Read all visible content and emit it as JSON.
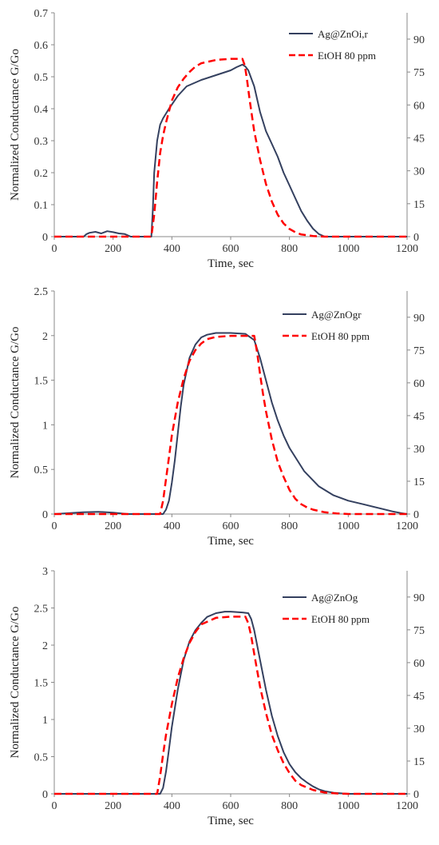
{
  "colors": {
    "sensor": "#34405f",
    "ethanol": "#ff0000",
    "axis": "#888888"
  },
  "chart_data": [
    {
      "type": "line",
      "xlabel": "Time, sec",
      "ylabel": "Normalized Conductance  G/Go",
      "xlim": [
        0,
        1200
      ],
      "xticks": [
        "0",
        "200",
        "400",
        "600",
        "800",
        "1000",
        "1200"
      ],
      "ylim": [
        0,
        0.7
      ],
      "yticks": [
        "0",
        "0.1",
        "0.2",
        "0.3",
        "0.4",
        "0.5",
        "0.6",
        "0.7"
      ],
      "y2lim": [
        0,
        102
      ],
      "y2ticks": [
        "0",
        "15",
        "30",
        "45",
        "60",
        "75",
        "90"
      ],
      "grid": false,
      "legend": "top-right",
      "series": [
        {
          "name": "Ag@ZnOi,r",
          "style": "solid",
          "axis": "left",
          "x": [
            0,
            100,
            110,
            120,
            140,
            160,
            180,
            200,
            220,
            240,
            260,
            300,
            330,
            335,
            340,
            350,
            360,
            370,
            390,
            420,
            450,
            500,
            550,
            600,
            620,
            640,
            650,
            660,
            680,
            700,
            720,
            740,
            760,
            780,
            800,
            820,
            840,
            860,
            880,
            900,
            920,
            1200
          ],
          "y": [
            0,
            0,
            0.008,
            0.012,
            0.015,
            0.01,
            0.017,
            0.014,
            0.01,
            0.008,
            0,
            0,
            0,
            0.08,
            0.2,
            0.3,
            0.35,
            0.37,
            0.4,
            0.44,
            0.47,
            0.49,
            0.505,
            0.52,
            0.53,
            0.538,
            0.532,
            0.52,
            0.47,
            0.39,
            0.33,
            0.29,
            0.25,
            0.2,
            0.16,
            0.12,
            0.08,
            0.05,
            0.025,
            0.008,
            0,
            0
          ]
        },
        {
          "name": "EtOH 80 ppm",
          "style": "dashed",
          "axis": "right",
          "x": [
            0,
            330,
            340,
            350,
            360,
            370,
            380,
            400,
            420,
            440,
            460,
            480,
            500,
            550,
            600,
            640,
            648,
            655,
            665,
            680,
            700,
            720,
            740,
            760,
            780,
            800,
            820,
            840,
            880,
            920,
            1200
          ],
          "y": [
            0,
            0,
            10,
            25,
            38,
            46,
            52,
            62,
            68,
            72,
            75,
            77.5,
            79,
            80.5,
            81,
            81,
            78,
            72,
            62,
            48,
            35,
            24,
            16,
            10,
            6,
            3.5,
            2,
            1,
            0.3,
            0,
            0
          ]
        }
      ]
    },
    {
      "type": "line",
      "xlabel": "Time, sec",
      "ylabel": "Normalized Conductance  G/Go",
      "xlim": [
        0,
        1200
      ],
      "xticks": [
        "0",
        "200",
        "400",
        "600",
        "800",
        "1000",
        "1200"
      ],
      "ylim": [
        0,
        2.5
      ],
      "yticks": [
        "0",
        "0.5",
        "1",
        "1.5",
        "2",
        "2.5"
      ],
      "y2lim": [
        0,
        102
      ],
      "y2ticks": [
        "0",
        "15",
        "30",
        "45",
        "60",
        "75",
        "90"
      ],
      "grid": false,
      "legend": "top-right",
      "series": [
        {
          "name": "Ag@ZnOgr",
          "style": "solid",
          "axis": "left",
          "x": [
            0,
            50,
            100,
            150,
            200,
            250,
            370,
            380,
            390,
            400,
            410,
            420,
            430,
            440,
            460,
            480,
            500,
            520,
            550,
            600,
            650,
            680,
            700,
            720,
            740,
            760,
            780,
            800,
            850,
            900,
            950,
            1000,
            1050,
            1100,
            1150,
            1180,
            1200
          ],
          "y": [
            0,
            0.01,
            0.02,
            0.025,
            0.015,
            0,
            0,
            0.05,
            0.15,
            0.35,
            0.6,
            0.9,
            1.2,
            1.45,
            1.75,
            1.9,
            1.98,
            2.01,
            2.03,
            2.03,
            2.02,
            1.95,
            1.75,
            1.5,
            1.25,
            1.05,
            0.88,
            0.74,
            0.48,
            0.31,
            0.21,
            0.15,
            0.11,
            0.07,
            0.03,
            0.01,
            0
          ]
        },
        {
          "name": "EtOH 80 ppm",
          "style": "dashed",
          "axis": "right",
          "x": [
            0,
            360,
            370,
            380,
            390,
            400,
            420,
            440,
            460,
            480,
            500,
            520,
            550,
            600,
            680,
            690,
            700,
            710,
            720,
            740,
            760,
            780,
            800,
            820,
            840,
            860,
            880,
            920,
            960,
            1000,
            1200
          ],
          "y": [
            0,
            0,
            6,
            16,
            26,
            36,
            51,
            62,
            70,
            75,
            78,
            80,
            81,
            81.5,
            81.5,
            74,
            64,
            55,
            47,
            34,
            24,
            17,
            11,
            7,
            4.5,
            3,
            2,
            0.8,
            0.3,
            0,
            0
          ]
        }
      ]
    },
    {
      "type": "line",
      "xlabel": "Time, sec",
      "ylabel": "Normalized Conductance  G/Go",
      "xlim": [
        0,
        1200
      ],
      "xticks": [
        "0",
        "200",
        "400",
        "600",
        "800",
        "1000",
        "1200"
      ],
      "ylim": [
        0,
        3
      ],
      "yticks": [
        "0",
        "0.5",
        "1",
        "1.5",
        "2",
        "2.5",
        "3"
      ],
      "y2lim": [
        0,
        102
      ],
      "y2ticks": [
        "0",
        "15",
        "30",
        "45",
        "60",
        "75",
        "90"
      ],
      "grid": false,
      "legend": "top-right",
      "series": [
        {
          "name": "Ag@ZnOg",
          "style": "solid",
          "axis": "left",
          "x": [
            0,
            100,
            200,
            300,
            360,
            370,
            380,
            390,
            400,
            420,
            440,
            460,
            480,
            500,
            520,
            550,
            580,
            600,
            640,
            660,
            670,
            680,
            700,
            720,
            740,
            760,
            780,
            800,
            820,
            840,
            860,
            880,
            900,
            920,
            950,
            980,
            1000,
            1200
          ],
          "y": [
            0,
            0,
            0,
            0,
            0,
            0.08,
            0.3,
            0.6,
            0.9,
            1.4,
            1.8,
            2.05,
            2.2,
            2.3,
            2.38,
            2.43,
            2.45,
            2.45,
            2.44,
            2.43,
            2.35,
            2.2,
            1.8,
            1.4,
            1.05,
            0.78,
            0.56,
            0.4,
            0.29,
            0.21,
            0.15,
            0.1,
            0.06,
            0.035,
            0.015,
            0.005,
            0,
            0
          ]
        },
        {
          "name": "EtOH 80 ppm",
          "style": "dashed",
          "axis": "right",
          "x": [
            0,
            350,
            360,
            370,
            380,
            400,
            420,
            440,
            460,
            480,
            500,
            550,
            600,
            650,
            660,
            670,
            680,
            700,
            720,
            740,
            760,
            780,
            800,
            820,
            840,
            880,
            920,
            960,
            1000,
            1200
          ],
          "y": [
            0,
            0,
            8,
            18,
            27,
            41,
            53,
            62,
            69,
            74,
            77.5,
            80.5,
            81,
            81,
            78,
            72,
            64,
            49,
            37,
            27,
            20,
            14,
            9.5,
            6,
            4,
            1.8,
            0.6,
            0.2,
            0,
            0
          ]
        }
      ]
    }
  ]
}
